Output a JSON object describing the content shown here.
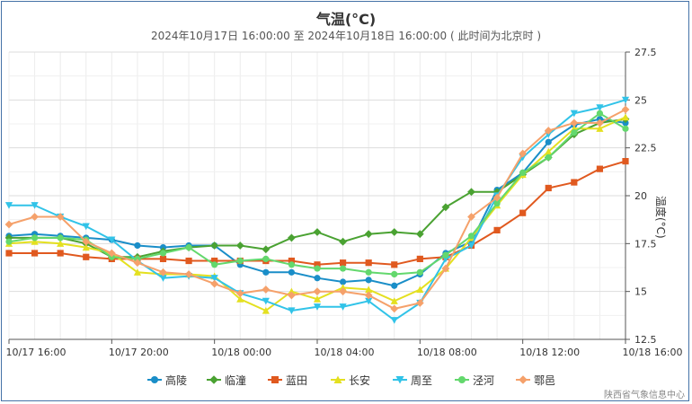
{
  "chart_data": {
    "type": "line",
    "title": "气温(°C)",
    "subtitle": "2024年10月17日 16:00:00 至 2024年10月18日 16:00:00 ( 此时间为北京时 )",
    "ylabel": "温度(°C)",
    "ylim": [
      12.5,
      27.5
    ],
    "yticks": [
      "12.5",
      "15",
      "17.5",
      "20",
      "22.5",
      "25",
      "27.5"
    ],
    "x_ticks": [
      "10/17 16:00",
      "10/17 20:00",
      "10/18 00:00",
      "10/18 04:00",
      "10/18 08:00",
      "10/18 12:00",
      "10/18 16:00"
    ],
    "grid": true,
    "legend_position": "bottom",
    "credit": "陕西省气象信息中心",
    "series": [
      {
        "name": "高陵",
        "color": "#1a8ec8",
        "marker": "circle",
        "values": [
          17.9,
          18.0,
          17.9,
          17.8,
          17.7,
          17.4,
          17.3,
          17.4,
          17.4,
          16.4,
          16.0,
          16.0,
          15.7,
          15.5,
          15.6,
          15.3,
          15.9,
          17.0,
          17.6,
          20.3,
          21.2,
          22.8,
          23.7,
          24.0,
          23.8
        ]
      },
      {
        "name": "临潼",
        "color": "#4aa232",
        "marker": "diamond",
        "values": [
          17.8,
          17.8,
          17.8,
          17.5,
          16.8,
          16.8,
          17.1,
          17.3,
          17.4,
          17.4,
          17.2,
          17.8,
          18.1,
          17.6,
          18.0,
          18.1,
          18.0,
          19.4,
          20.2,
          20.2,
          21.1,
          22.0,
          23.2,
          23.8,
          24.0
        ]
      },
      {
        "name": "蓝田",
        "color": "#e0591f",
        "marker": "square",
        "values": [
          17.0,
          17.0,
          17.0,
          16.8,
          16.7,
          16.7,
          16.7,
          16.6,
          16.6,
          16.6,
          16.6,
          16.6,
          16.4,
          16.5,
          16.5,
          16.4,
          16.7,
          16.8,
          17.4,
          18.2,
          19.1,
          20.4,
          20.7,
          21.4,
          21.8
        ]
      },
      {
        "name": "长安",
        "color": "#e4e020",
        "marker": "triangle",
        "values": [
          17.5,
          17.6,
          17.5,
          17.3,
          17.0,
          16.0,
          15.9,
          15.9,
          15.8,
          14.6,
          14.0,
          15.0,
          14.6,
          15.2,
          15.1,
          14.5,
          15.1,
          16.2,
          17.8,
          19.5,
          21.1,
          22.3,
          23.5,
          23.5,
          24.1
        ]
      },
      {
        "name": "周至",
        "color": "#31c3e8",
        "marker": "triangle-down",
        "values": [
          19.5,
          19.5,
          18.9,
          18.4,
          17.7,
          16.6,
          15.7,
          15.8,
          15.7,
          14.9,
          14.5,
          14.0,
          14.2,
          14.2,
          14.5,
          13.5,
          14.4,
          16.7,
          17.4,
          20.0,
          22.0,
          23.2,
          24.3,
          24.6,
          25.0
        ]
      },
      {
        "name": "泾河",
        "color": "#63d86d",
        "marker": "circle",
        "values": [
          17.6,
          17.8,
          17.8,
          17.7,
          16.8,
          16.7,
          17.0,
          17.3,
          16.4,
          16.6,
          16.7,
          16.4,
          16.2,
          16.2,
          16.0,
          15.9,
          16.0,
          16.9,
          17.9,
          19.6,
          21.2,
          22.0,
          23.3,
          24.3,
          23.5
        ]
      },
      {
        "name": "鄠邑",
        "color": "#f5a16b",
        "marker": "diamond",
        "values": [
          18.5,
          18.9,
          18.9,
          17.6,
          17.0,
          16.5,
          16.0,
          15.9,
          15.4,
          14.9,
          15.1,
          14.8,
          15.0,
          15.0,
          14.8,
          14.1,
          14.4,
          16.2,
          18.9,
          19.9,
          22.2,
          23.4,
          23.8,
          23.8,
          24.5
        ]
      }
    ]
  }
}
